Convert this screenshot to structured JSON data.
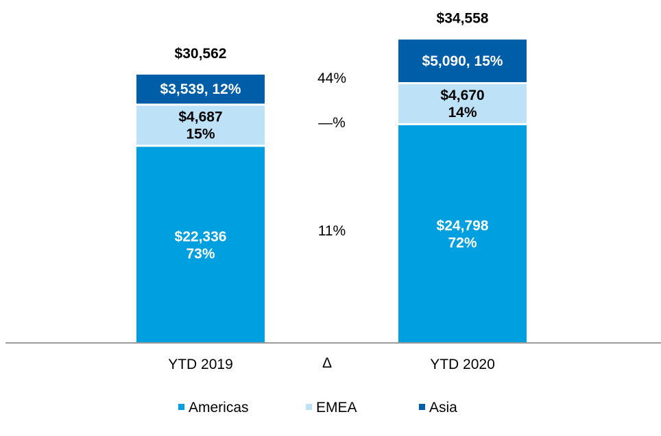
{
  "chart_data": {
    "type": "bar",
    "stacked": true,
    "categories": [
      "YTD 2019",
      "YTD 2020"
    ],
    "delta_category": "Δ",
    "series": [
      {
        "name": "Americas",
        "color": "#009FDF",
        "text_color": "#ffffff",
        "values": [
          22336,
          24798
        ],
        "labels": [
          [
            "$22,336",
            "73%"
          ],
          [
            "$24,798",
            "72%"
          ]
        ],
        "delta": "11%"
      },
      {
        "name": "EMEA",
        "color": "#BDE1F7",
        "text_color": "#000000",
        "values": [
          4687,
          4670
        ],
        "labels": [
          [
            "$4,687",
            "15%"
          ],
          [
            "$4,670",
            "14%"
          ]
        ],
        "delta": "—%"
      },
      {
        "name": "Asia",
        "color": "#005EA8",
        "text_color": "#ffffff",
        "values": [
          3539,
          5090
        ],
        "labels": [
          [
            "$3,539, 12%"
          ],
          [
            "$5,090, 15%"
          ]
        ],
        "delta": "44%"
      }
    ],
    "totals": [
      "$30,562",
      "$34,558"
    ],
    "legend_position": "bottom"
  }
}
